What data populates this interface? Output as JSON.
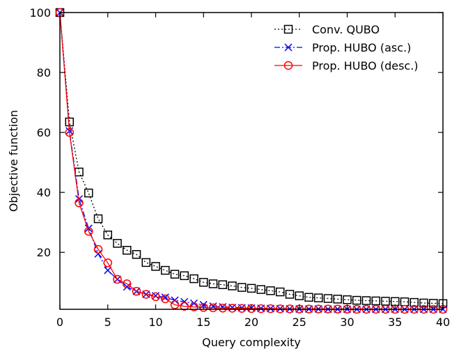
{
  "chart_data": {
    "type": "line",
    "xlabel": "Query complexity",
    "ylabel": "Objective function",
    "xlim": [
      0,
      40
    ],
    "ylim": [
      1,
      100
    ],
    "xticks": [
      0,
      5,
      10,
      15,
      20,
      25,
      30,
      35,
      40
    ],
    "yticks": [
      20,
      40,
      60,
      80,
      100
    ],
    "grid": false,
    "legend_position": "top-right",
    "series": [
      {
        "name": "Conv. QUBO",
        "color": "#000000",
        "line_style": "dotted",
        "marker": "square",
        "x": [
          0,
          1,
          2,
          3,
          4,
          5,
          6,
          7,
          8,
          9,
          10,
          11,
          12,
          13,
          14,
          15,
          16,
          17,
          18,
          19,
          20,
          21,
          22,
          23,
          24,
          25,
          26,
          27,
          28,
          29,
          30,
          31,
          32,
          33,
          34,
          35,
          36,
          37,
          38,
          39,
          40
        ],
        "values": [
          100,
          63.5,
          46.8,
          39.8,
          31.2,
          25.8,
          23,
          20.7,
          19.3,
          16.6,
          15.3,
          14,
          12.7,
          12.2,
          11.2,
          10,
          9.5,
          9.2,
          8.8,
          8.3,
          8.0,
          7.6,
          7.2,
          6.8,
          6.0,
          5.5,
          5.0,
          4.8,
          4.6,
          4.4,
          4.2,
          4.0,
          3.9,
          3.8,
          3.7,
          3.6,
          3.5,
          3.3,
          3.1,
          3.0,
          2.9
        ]
      },
      {
        "name": "Prop. HUBO (asc.)",
        "color": "#0000ff",
        "line_style": "dash-dot",
        "marker": "x",
        "x": [
          0,
          1,
          2,
          3,
          4,
          5,
          6,
          7,
          8,
          9,
          10,
          11,
          12,
          13,
          14,
          15,
          16,
          17,
          18,
          19,
          20,
          21,
          22,
          23,
          24,
          25,
          26,
          27,
          28,
          29,
          30,
          31,
          32,
          33,
          34,
          35,
          36,
          37,
          38,
          39,
          40
        ],
        "values": [
          100,
          60.5,
          37.8,
          28,
          19.5,
          14,
          11,
          8.5,
          7,
          6,
          5.5,
          5,
          4,
          3.5,
          3,
          2.5,
          2,
          1.8,
          1.6,
          1.5,
          1.4,
          1.3,
          1.25,
          1.2,
          1.15,
          1.1,
          1.1,
          1.1,
          1.05,
          1.05,
          1,
          1,
          1,
          1,
          1,
          1,
          1,
          1,
          1,
          1,
          1
        ]
      },
      {
        "name": "Prop. HUBO (desc.)",
        "color": "#ff0000",
        "line_style": "solid",
        "marker": "circle",
        "x": [
          0,
          1,
          2,
          3,
          4,
          5,
          6,
          7,
          8,
          9,
          10,
          11,
          12,
          13,
          14,
          15,
          16,
          17,
          18,
          19,
          20,
          21,
          22,
          23,
          24,
          25,
          26,
          27,
          28,
          29,
          30,
          31,
          32,
          33,
          34,
          35,
          36,
          37,
          38,
          39,
          40
        ],
        "values": [
          100,
          60,
          36.5,
          27,
          21,
          16.5,
          11,
          9.5,
          7,
          6,
          5.2,
          4.5,
          2.5,
          2,
          1.8,
          1.6,
          1.5,
          1.4,
          1.35,
          1.3,
          1.25,
          1.2,
          1.2,
          1.15,
          1.15,
          1.1,
          1.1,
          1.1,
          1.1,
          1.05,
          1.05,
          1,
          1,
          1,
          1,
          1,
          1,
          1,
          1,
          1,
          1
        ]
      }
    ]
  }
}
